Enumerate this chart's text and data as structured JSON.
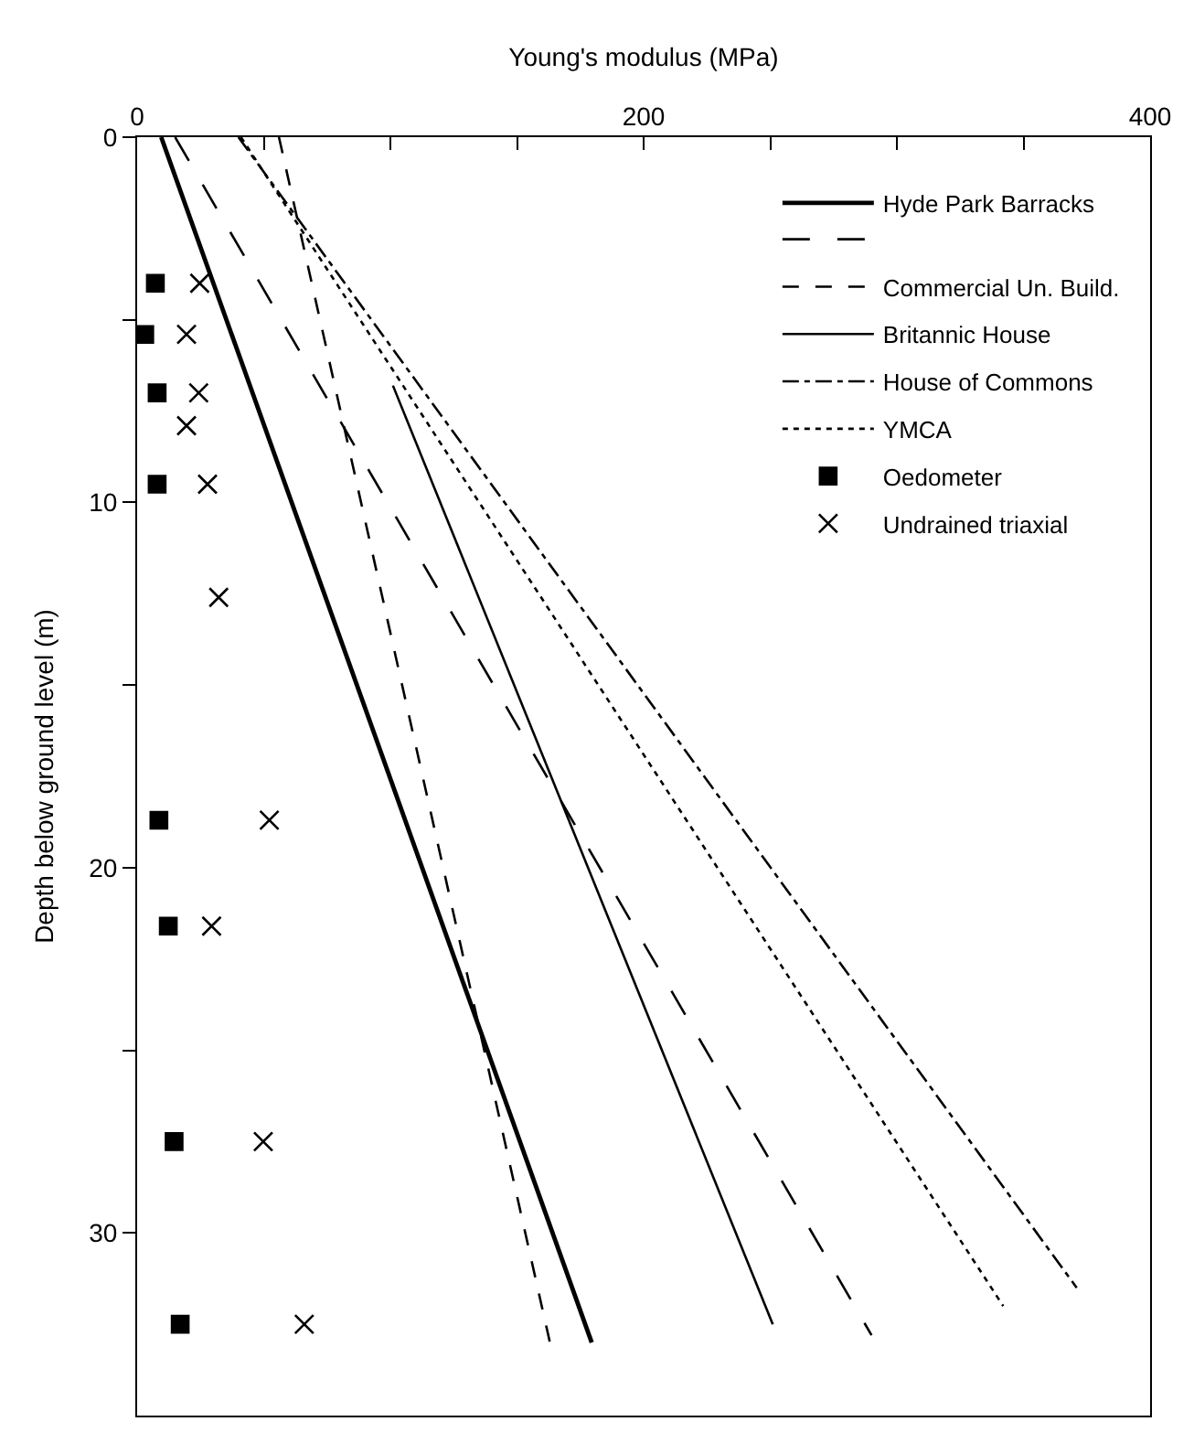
{
  "chart_data": {
    "type": "line",
    "xlabel": "Young's modulus (MPa)",
    "ylabel": "Depth below ground level (m)",
    "xlim": [
      0,
      400
    ],
    "xticks": [
      0,
      {
        "value": 50,
        "label": null
      },
      {
        "value": 100,
        "label": null
      },
      {
        "value": 150,
        "label": null
      },
      200,
      {
        "value": 250,
        "label": null
      },
      {
        "value": 300,
        "label": null
      },
      {
        "value": 350,
        "label": null
      },
      400
    ],
    "ylim": [
      35,
      0
    ],
    "yticks": [
      0,
      {
        "value": 5,
        "label": null
      },
      10,
      {
        "value": 15,
        "label": null
      },
      20,
      {
        "value": 25,
        "label": null
      },
      30
    ],
    "legend": "top right",
    "series": [
      {
        "name": "Hyde Park Barracks",
        "color": "#000000",
        "line_style": "solid",
        "marker": "none",
        "x": [
          9.5,
          179.5
        ],
        "values": [
          0,
          33
        ]
      },
      {
        "color": "#000000",
        "line_style": "longdash",
        "marker": "none",
        "x": [
          15,
          290
        ],
        "values": [
          0,
          32.8
        ]
      },
      {
        "name": "Commercial Un. Build.",
        "color": "#000000",
        "line_style": "dashed",
        "marker": "none",
        "x": [
          56,
          163
        ],
        "values": [
          0,
          33
        ]
      },
      {
        "name": "Britannic House",
        "color": "#000000",
        "line_style": "solid",
        "marker": "none",
        "x": [
          101,
          251
        ],
        "values": [
          6.8,
          32.5
        ]
      },
      {
        "name": "House of Commons",
        "color": "#000000",
        "line_style": "dashdot",
        "marker": "none",
        "x": [
          40,
          371
        ],
        "values": [
          0,
          31.5
        ]
      },
      {
        "name": "YMCA",
        "color": "#000000",
        "line_style": "dotted",
        "marker": "none",
        "x": [
          41,
          342
        ],
        "values": [
          0,
          32
        ]
      },
      {
        "name": "Oedometer",
        "color": "#000000",
        "type": "scatter",
        "marker": "square",
        "x": [
          7.2,
          3,
          7.9,
          7.9,
          8.6,
          12.3,
          14.6,
          17
        ],
        "values": [
          4.0,
          5.4,
          7.0,
          9.5,
          18.7,
          21.6,
          27.5,
          32.5
        ]
      },
      {
        "name": "Undrained triaxial",
        "color": "#000000",
        "type": "scatter",
        "marker": "cross",
        "x": [
          24.7,
          19.5,
          24.3,
          19.5,
          27.8,
          32.2,
          52.2,
          29.4,
          49.8,
          66
        ],
        "values": [
          4.0,
          5.4,
          7.0,
          7.9,
          9.5,
          12.6,
          18.7,
          21.6,
          27.5,
          32.5
        ]
      }
    ]
  }
}
